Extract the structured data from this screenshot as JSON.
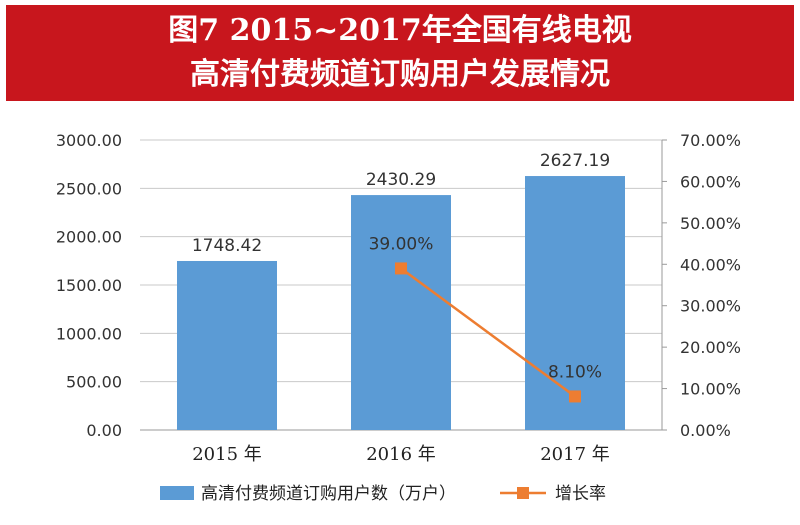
{
  "header": {
    "line1": "图7 2015~2017年全国有线电视",
    "line2": "高清付费频道订购用户发展情况"
  },
  "chart_data": {
    "type": "bar",
    "categories": [
      "2015 年",
      "2016 年",
      "2017 年"
    ],
    "series": [
      {
        "name": "高清付费频道订购用户数（万户）",
        "type": "bar",
        "axis": "left",
        "color": "#5b9bd5",
        "values": [
          1748.42,
          2430.29,
          2627.19
        ],
        "labels": [
          "1748.42",
          "2430.29",
          "2627.19"
        ]
      },
      {
        "name": "增长率",
        "type": "line",
        "axis": "right",
        "color": "#ed7d31",
        "values": [
          null,
          39.0,
          8.1
        ],
        "labels": [
          null,
          "39.00%",
          "8.10%"
        ]
      }
    ],
    "y_left": {
      "lim": [
        0,
        3000
      ],
      "ticks": [
        "0.00",
        "500.00",
        "1000.00",
        "1500.00",
        "2000.00",
        "2500.00",
        "3000.00"
      ]
    },
    "y_right": {
      "lim": [
        0,
        70
      ],
      "ticks": [
        "0.00%",
        "10.00%",
        "20.00%",
        "30.00%",
        "40.00%",
        "50.00%",
        "60.00%",
        "70.00%"
      ]
    },
    "gridlines": true,
    "legend_position": "bottom"
  }
}
